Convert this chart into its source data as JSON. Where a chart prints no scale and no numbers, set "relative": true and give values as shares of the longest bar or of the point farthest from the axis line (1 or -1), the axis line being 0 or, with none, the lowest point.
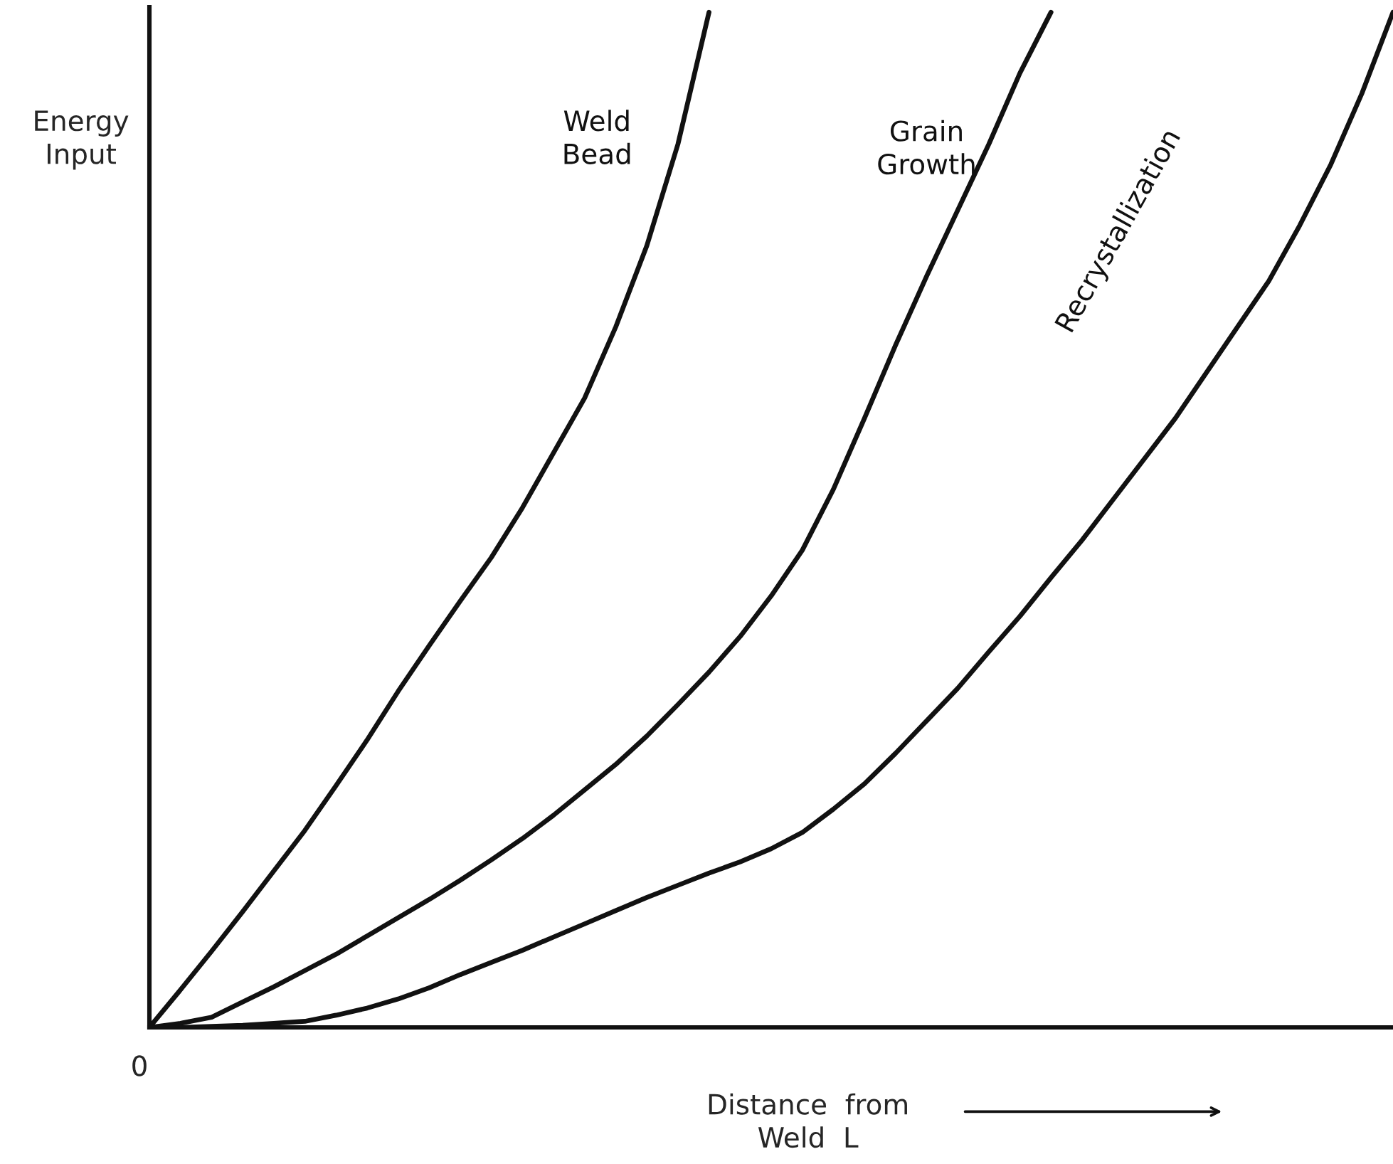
{
  "chart_data": {
    "type": "line",
    "relative": true,
    "ylabel": "Energy\nInput",
    "xlabel": "Distance  from\nWeld  L",
    "annotations": [
      "0"
    ],
    "legend": false,
    "marker": "none",
    "line_style": "solid",
    "categories": [
      null,
      null,
      null,
      null,
      null,
      null,
      null,
      null,
      null,
      null,
      null,
      null,
      null,
      null,
      null,
      null,
      null,
      null,
      null,
      null,
      null,
      null,
      null,
      null,
      null,
      null,
      null,
      null,
      null,
      null,
      null,
      null,
      null,
      null,
      null,
      null,
      null,
      null,
      null,
      null,
      null
    ],
    "series": [
      {
        "name": "Weld\nBead",
        "color": "#111111",
        "values": [
          0,
          0.037,
          0.075,
          0.114,
          0.154,
          0.194,
          0.238,
          0.283,
          0.331,
          0.376,
          0.42,
          0.463,
          0.512,
          0.566,
          0.62,
          0.69,
          0.77,
          0.87,
          1,
          null,
          null,
          null,
          null,
          null,
          null,
          null,
          null,
          null,
          null,
          null,
          null,
          null,
          null,
          null,
          null,
          null,
          null,
          null,
          null,
          null,
          null
        ]
      },
      {
        "name": "Grain\nGrowth",
        "color": "#111111",
        "values": [
          0,
          0.004,
          0.01,
          0.025,
          0.04,
          0.056,
          0.072,
          0.09,
          0.108,
          0.126,
          0.145,
          0.165,
          0.186,
          0.209,
          0.234,
          0.259,
          0.287,
          0.318,
          0.35,
          0.385,
          0.425,
          0.47,
          0.53,
          0.6,
          0.672,
          0.74,
          0.805,
          0.87,
          0.94,
          1,
          null,
          null,
          null,
          null,
          null,
          null,
          null,
          null,
          null,
          null,
          null
        ]
      },
      {
        "name": "Recrystallization",
        "color": "#111111",
        "values": [
          0,
          0,
          0.001,
          0.002,
          0.004,
          0.006,
          0.012,
          0.019,
          0.028,
          0.039,
          0.052,
          0.064,
          0.076,
          0.089,
          0.102,
          0.115,
          0.128,
          0.14,
          0.152,
          0.163,
          0.176,
          0.192,
          0.215,
          0.24,
          0.27,
          0.302,
          0.334,
          0.37,
          0.405,
          0.443,
          0.48,
          0.52,
          0.56,
          0.6,
          0.645,
          0.69,
          0.735,
          0.79,
          0.85,
          0.92,
          1
        ]
      }
    ]
  }
}
